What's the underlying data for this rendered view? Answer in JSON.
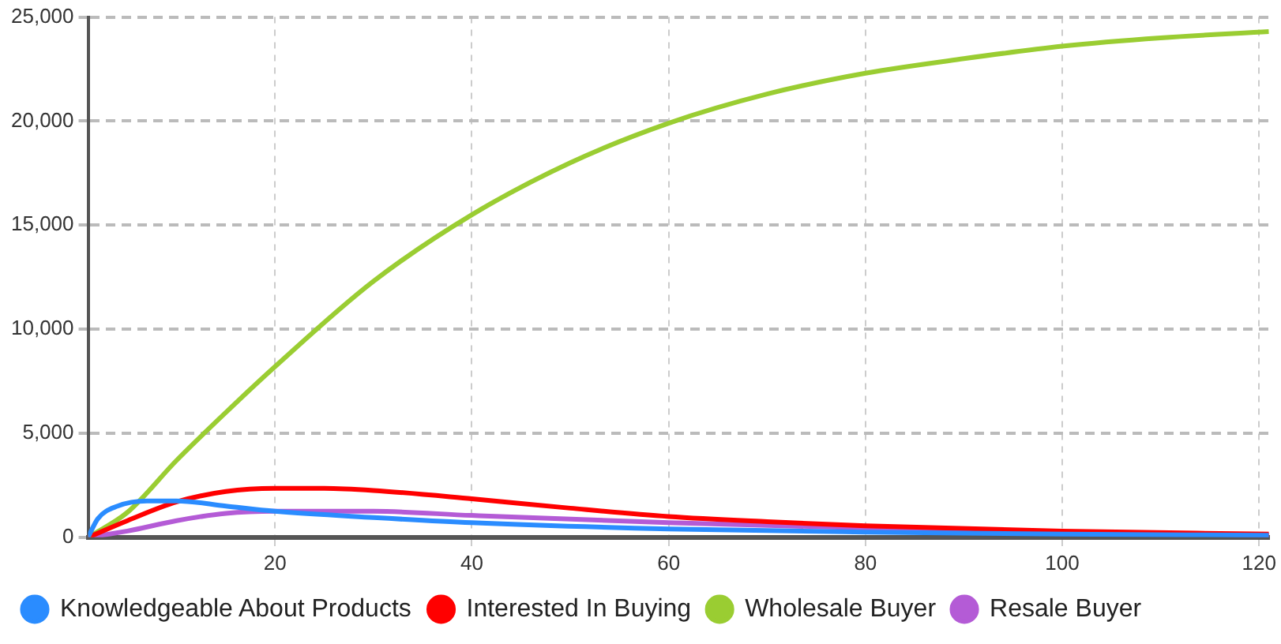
{
  "chart_data": {
    "type": "line",
    "xlim": [
      1,
      121
    ],
    "xticks": [
      20,
      40,
      60,
      80,
      100,
      120
    ],
    "ylim": [
      0,
      25000
    ],
    "yticks": [
      {
        "value": 0,
        "label": "0"
      },
      {
        "value": 5000,
        "label": "5,000"
      },
      {
        "value": 10000,
        "label": "10,000"
      },
      {
        "value": 15000,
        "label": "15,000"
      },
      {
        "value": 20000,
        "label": "20,000"
      },
      {
        "value": 25000,
        "label": "25,000"
      }
    ],
    "grid": true,
    "legend": "bottom",
    "marker": "none",
    "line_style": "solid",
    "series": [
      {
        "name": "Knowledgeable About Products",
        "color": "#2a8cff",
        "x": [
          1,
          2,
          4,
          7,
          10,
          15,
          20,
          30,
          40,
          60,
          80,
          100,
          121
        ],
        "values": [
          0,
          900,
          1500,
          1750,
          1750,
          1500,
          1250,
          950,
          700,
          400,
          250,
          150,
          100
        ]
      },
      {
        "name": "Interested In Buying",
        "color": "#ff0000",
        "x": [
          1,
          5,
          10,
          15,
          20,
          25,
          30,
          40,
          50,
          60,
          70,
          80,
          100,
          121
        ],
        "values": [
          0,
          800,
          1700,
          2200,
          2350,
          2350,
          2250,
          1850,
          1400,
          1000,
          750,
          550,
          300,
          150
        ]
      },
      {
        "name": "Wholesale Buyer",
        "color": "#9acd32",
        "x": [
          1,
          5,
          10,
          15,
          20,
          30,
          40,
          50,
          60,
          70,
          80,
          90,
          100,
          110,
          121
        ],
        "values": [
          0,
          1200,
          3700,
          6000,
          8200,
          12300,
          15500,
          18000,
          19900,
          21300,
          22300,
          23000,
          23600,
          24000,
          24300
        ]
      },
      {
        "name": "Resale Buyer",
        "color": "#b45bd6",
        "x": [
          1,
          5,
          10,
          15,
          20,
          30,
          40,
          60,
          80,
          100,
          121
        ],
        "values": [
          0,
          300,
          800,
          1150,
          1250,
          1250,
          1050,
          700,
          450,
          250,
          120
        ]
      }
    ]
  }
}
